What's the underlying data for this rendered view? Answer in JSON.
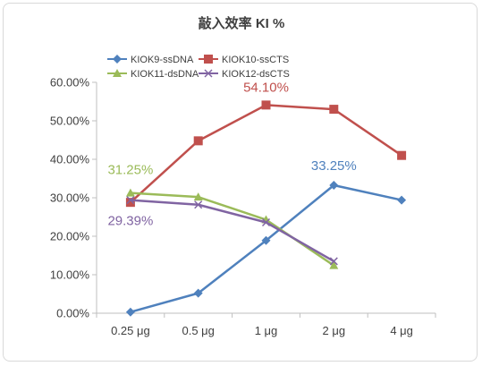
{
  "chart_data": {
    "type": "line",
    "title": "敲入效率 KI %",
    "categories": [
      "0.25 μg",
      "0.5 μg",
      "1 μg",
      "2 μg",
      "4 μg"
    ],
    "ylim": [
      0,
      60
    ],
    "yticks": [
      "0.00%",
      "10.00%",
      "20.00%",
      "30.00%",
      "40.00%",
      "50.00%",
      "60.00%"
    ],
    "grid": false,
    "legend_position": "top",
    "series": [
      {
        "name": "KIOK9-ssDNA",
        "color": "#4f81bd",
        "marker": "diamond",
        "values": [
          0.3,
          5.2,
          18.9,
          33.25,
          29.4
        ]
      },
      {
        "name": "KIOK10-ssCTS",
        "color": "#c0504d",
        "marker": "square",
        "values": [
          28.8,
          44.8,
          54.1,
          53.0,
          41.0
        ]
      },
      {
        "name": "KIOK11-dsDNA",
        "color": "#9bbb59",
        "marker": "triangle",
        "values": [
          31.25,
          30.2,
          24.3,
          12.4,
          null
        ]
      },
      {
        "name": "KIOK12-dsCTS",
        "color": "#8064a2",
        "marker": "x",
        "values": [
          29.39,
          28.2,
          23.6,
          13.5,
          null
        ]
      }
    ],
    "annotations": [
      {
        "text": "54.10%",
        "series": "KIOK10-ssCTS",
        "category": "1 μg",
        "color": "#c0504d"
      },
      {
        "text": "33.25%",
        "series": "KIOK9-ssDNA",
        "category": "2 μg",
        "color": "#4f81bd"
      },
      {
        "text": "31.25%",
        "series": "KIOK11-dsDNA",
        "category": "0.25 μg",
        "color": "#9bbb59"
      },
      {
        "text": "29.39%",
        "series": "KIOK12-dsCTS",
        "category": "0.25 μg",
        "color": "#8064a2"
      }
    ]
  }
}
